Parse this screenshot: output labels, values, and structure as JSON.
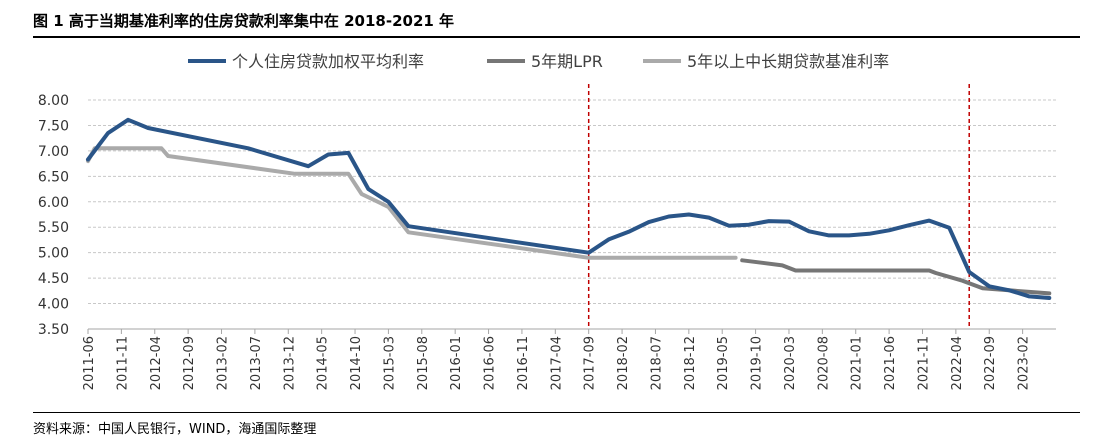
{
  "figure": {
    "title": "图 1 高于当期基准利率的住房贷款利率集中在 2018-2021 年",
    "source": "资料来源：中国人民银行，WIND，海通国际整理"
  },
  "chart_data": {
    "type": "line",
    "ylim": [
      3.5,
      8.0
    ],
    "yticks": [
      "8.00",
      "7.50",
      "7.00",
      "6.50",
      "6.00",
      "5.50",
      "5.00",
      "4.50",
      "4.00",
      "3.50"
    ],
    "grid": true,
    "legend_position": "top",
    "x_ticks": [
      "2011-06",
      "2011-11",
      "2012-04",
      "2012-09",
      "2013-02",
      "2013-07",
      "2013-12",
      "2014-05",
      "2014-10",
      "2015-03",
      "2015-08",
      "2016-01",
      "2016-06",
      "2016-11",
      "2017-04",
      "2017-09",
      "2018-02",
      "2018-07",
      "2018-12",
      "2019-05",
      "2019-10",
      "2020-03",
      "2020-08",
      "2021-01",
      "2021-06",
      "2021-11",
      "2022-04",
      "2022-09",
      "2023-02"
    ],
    "vlines": [
      {
        "x": "2017-09",
        "color": "#c00000"
      },
      {
        "x": "2022-06",
        "color": "#c00000"
      }
    ],
    "series": [
      {
        "name": "个人住房贷款加权平均利率",
        "color": "#2a5588",
        "points": [
          [
            "2011-06",
            6.83
          ],
          [
            "2011-09",
            7.35
          ],
          [
            "2011-12",
            7.61
          ],
          [
            "2012-03",
            7.45
          ],
          [
            "2013-06",
            7.05
          ],
          [
            "2014-03",
            6.7
          ],
          [
            "2014-06",
            6.93
          ],
          [
            "2014-09",
            6.96
          ],
          [
            "2014-12",
            6.25
          ],
          [
            "2015-03",
            6.0
          ],
          [
            "2015-06",
            5.52
          ],
          [
            "2017-09",
            5.0
          ],
          [
            "2017-12",
            5.26
          ],
          [
            "2018-03",
            5.41
          ],
          [
            "2018-06",
            5.6
          ],
          [
            "2018-09",
            5.71
          ],
          [
            "2018-12",
            5.75
          ],
          [
            "2019-03",
            5.69
          ],
          [
            "2019-06",
            5.53
          ],
          [
            "2019-09",
            5.55
          ],
          [
            "2019-12",
            5.62
          ],
          [
            "2020-03",
            5.61
          ],
          [
            "2020-06",
            5.42
          ],
          [
            "2020-09",
            5.34
          ],
          [
            "2020-12",
            5.34
          ],
          [
            "2021-03",
            5.37
          ],
          [
            "2021-06",
            5.44
          ],
          [
            "2021-09",
            5.54
          ],
          [
            "2021-12",
            5.63
          ],
          [
            "2022-03",
            5.49
          ],
          [
            "2022-06",
            4.62
          ],
          [
            "2022-09",
            4.34
          ],
          [
            "2022-12",
            4.26
          ],
          [
            "2023-03",
            4.14
          ],
          [
            "2023-06",
            4.11
          ]
        ]
      },
      {
        "name": "5年期LPR",
        "color": "#767676",
        "points": [
          [
            "2019-08",
            4.85
          ],
          [
            "2019-11",
            4.8
          ],
          [
            "2020-02",
            4.75
          ],
          [
            "2020-04",
            4.65
          ],
          [
            "2021-12",
            4.65
          ],
          [
            "2022-01",
            4.6
          ],
          [
            "2022-05",
            4.45
          ],
          [
            "2022-08",
            4.3
          ],
          [
            "2023-06",
            4.2
          ]
        ]
      },
      {
        "name": "5年以上中长期贷款基准利率",
        "color": "#aaaaaa",
        "points": [
          [
            "2011-06",
            6.8
          ],
          [
            "2011-07",
            7.05
          ],
          [
            "2012-05",
            7.05
          ],
          [
            "2012-06",
            6.9
          ],
          [
            "2014-01",
            6.55
          ],
          [
            "2014-09",
            6.55
          ],
          [
            "2014-11",
            6.15
          ],
          [
            "2015-03",
            5.9
          ],
          [
            "2015-06",
            5.4
          ],
          [
            "2017-09",
            4.9
          ],
          [
            "2019-07",
            4.9
          ]
        ]
      }
    ]
  }
}
